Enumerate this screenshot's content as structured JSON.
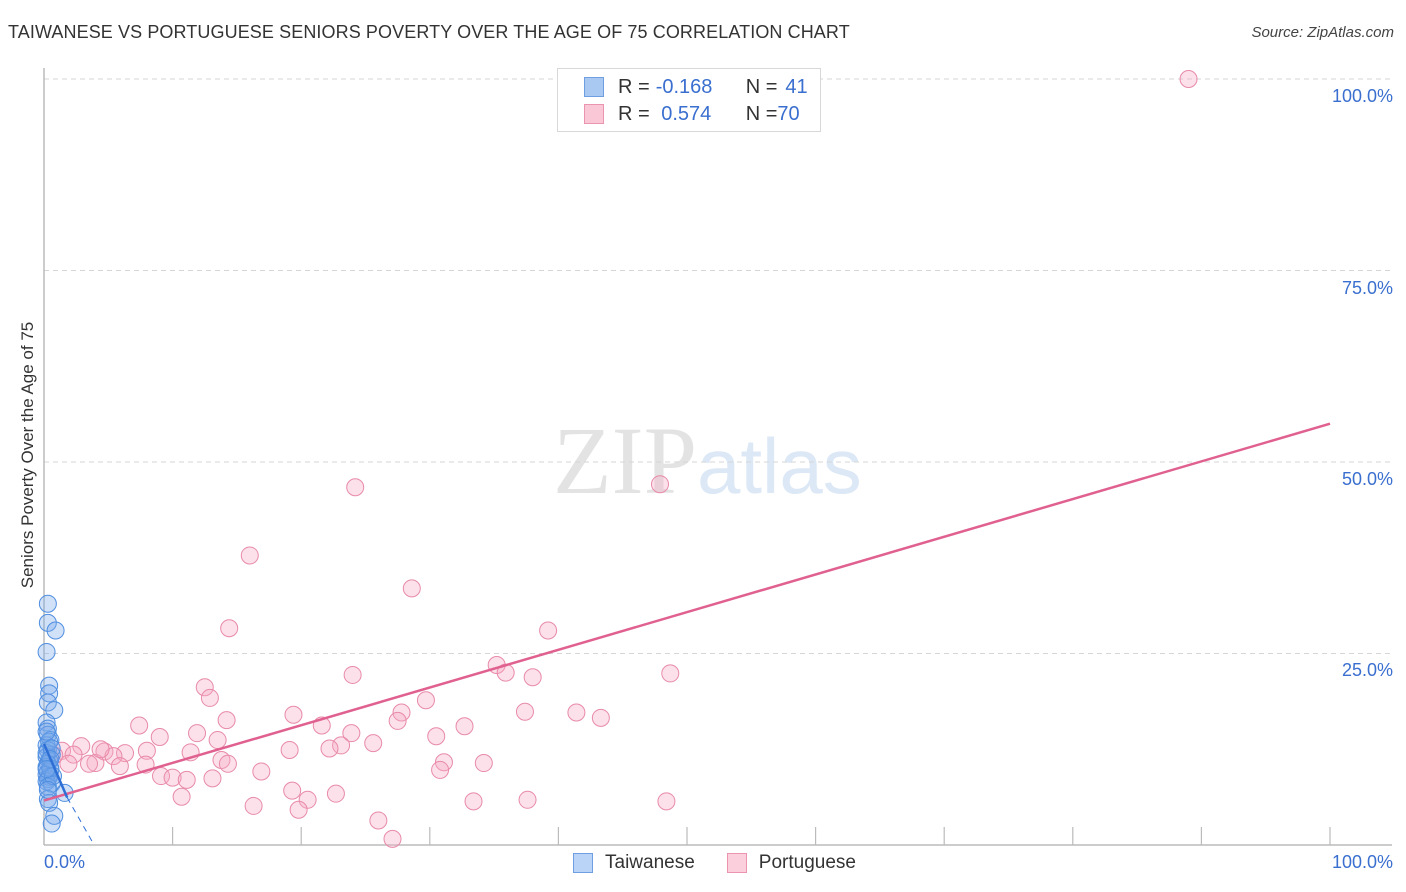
{
  "header": {
    "title": "TAIWANESE VS PORTUGUESE SENIORS POVERTY OVER THE AGE OF 75 CORRELATION CHART",
    "source": "Source: ZipAtlas.com"
  },
  "legend": {
    "rows": [
      {
        "r_label": "R = ",
        "r_value": "-0.168",
        "n_label": "N = ",
        "n_value": "41",
        "color": "#a9c8f2",
        "border": "#6f9fe0"
      },
      {
        "r_label": "R = ",
        "r_value": " 0.574",
        "n_label": "N = ",
        "n_value": "70",
        "color": "#f9c7d6",
        "border": "#eb94b0"
      }
    ]
  },
  "bottom_legend": [
    {
      "label": "Taiwanese",
      "color": "#b9d4f6",
      "border": "#6f9fe0"
    },
    {
      "label": "Portuguese",
      "color": "#fbd0dc",
      "border": "#eb94b0"
    }
  ],
  "axes": {
    "x_min_label": "0.0%",
    "x_max_label": "100.0%",
    "y_ticks": [
      "100.0%",
      "75.0%",
      "50.0%",
      "25.0%"
    ],
    "y_label": "Seniors Poverty Over the Age of 75"
  },
  "watermark": {
    "zip": "ZIP",
    "atlas": "atlas"
  },
  "colors": {
    "taiwanese_fill": "rgba(120,170,235,0.35)",
    "taiwanese_stroke": "#4f8ee0",
    "taiwanese_line": "#2e6fd6",
    "portuguese_fill": "rgba(246,170,195,0.35)",
    "portuguese_stroke": "#e88aa8",
    "portuguese_line": "#e0608f",
    "grid": "#d6d6d6",
    "axis": "#bbbbbb",
    "tick_label": "#3a6fcf"
  },
  "chart_data": {
    "type": "scatter",
    "title": "TAIWANESE VS PORTUGUESE SENIORS POVERTY OVER THE AGE OF 75 CORRELATION CHART",
    "xlabel": "",
    "ylabel": "Seniors Poverty Over the Age of 75",
    "xlim": [
      0,
      100
    ],
    "ylim": [
      0,
      100
    ],
    "x_tick_labels": [
      "0.0%",
      "100.0%"
    ],
    "y_tick_labels": [
      "25.0%",
      "50.0%",
      "75.0%",
      "100.0%"
    ],
    "grid": true,
    "legend_position": "top-center and bottom",
    "series": [
      {
        "name": "Taiwanese",
        "R": -0.168,
        "N": 41,
        "points": [
          [
            0.3,
            31.5
          ],
          [
            0.3,
            29.0
          ],
          [
            0.9,
            28.0
          ],
          [
            0.2,
            25.2
          ],
          [
            0.4,
            20.8
          ],
          [
            0.4,
            19.8
          ],
          [
            0.3,
            18.6
          ],
          [
            0.8,
            17.6
          ],
          [
            0.2,
            16.0
          ],
          [
            0.3,
            15.2
          ],
          [
            0.3,
            14.4
          ],
          [
            0.5,
            13.7
          ],
          [
            0.2,
            13.0
          ],
          [
            0.3,
            12.4
          ],
          [
            0.6,
            11.8
          ],
          [
            0.2,
            11.5
          ],
          [
            0.4,
            11.0
          ],
          [
            0.3,
            10.6
          ],
          [
            0.2,
            10.2
          ],
          [
            0.5,
            9.8
          ],
          [
            0.3,
            9.5
          ],
          [
            0.2,
            9.2
          ],
          [
            0.4,
            8.9
          ],
          [
            0.3,
            8.6
          ],
          [
            0.2,
            8.3
          ],
          [
            0.6,
            8.0
          ],
          [
            0.3,
            7.6
          ],
          [
            1.6,
            6.8
          ],
          [
            0.3,
            6.0
          ],
          [
            0.4,
            5.5
          ],
          [
            0.8,
            3.8
          ],
          [
            0.6,
            2.8
          ],
          [
            0.2,
            12.0
          ],
          [
            0.5,
            10.0
          ],
          [
            0.7,
            9.0
          ],
          [
            0.4,
            13.5
          ],
          [
            0.2,
            14.8
          ],
          [
            0.6,
            12.6
          ],
          [
            0.3,
            7.2
          ],
          [
            0.5,
            11.2
          ],
          [
            0.2,
            9.9
          ]
        ],
        "trend_line": {
          "x": [
            0,
            1.8
          ],
          "y": [
            13.2,
            6.2
          ],
          "dashed_extension_to": [
            3.9,
            0.0
          ]
        }
      },
      {
        "name": "Portuguese",
        "R": 0.574,
        "N": 70,
        "points": [
          [
            89.0,
            100.0
          ],
          [
            47.9,
            47.1
          ],
          [
            24.2,
            46.7
          ],
          [
            16.0,
            37.8
          ],
          [
            28.6,
            33.5
          ],
          [
            14.4,
            28.3
          ],
          [
            39.2,
            28.0
          ],
          [
            35.2,
            23.5
          ],
          [
            48.7,
            22.4
          ],
          [
            24.0,
            22.2
          ],
          [
            35.9,
            22.5
          ],
          [
            38.0,
            21.9
          ],
          [
            12.5,
            20.6
          ],
          [
            12.9,
            19.2
          ],
          [
            29.7,
            18.9
          ],
          [
            37.4,
            17.4
          ],
          [
            41.4,
            17.3
          ],
          [
            43.3,
            16.6
          ],
          [
            19.4,
            17.0
          ],
          [
            27.8,
            17.3
          ],
          [
            14.2,
            16.3
          ],
          [
            27.5,
            16.2
          ],
          [
            21.6,
            15.6
          ],
          [
            7.4,
            15.6
          ],
          [
            32.7,
            15.5
          ],
          [
            11.9,
            14.6
          ],
          [
            23.9,
            14.6
          ],
          [
            9.0,
            14.1
          ],
          [
            13.5,
            13.7
          ],
          [
            30.5,
            14.2
          ],
          [
            19.1,
            12.4
          ],
          [
            23.1,
            13.0
          ],
          [
            2.9,
            12.9
          ],
          [
            8.0,
            12.3
          ],
          [
            11.4,
            12.1
          ],
          [
            1.4,
            12.3
          ],
          [
            6.3,
            12.0
          ],
          [
            4.7,
            12.2
          ],
          [
            0.8,
            11.7
          ],
          [
            5.4,
            11.6
          ],
          [
            2.3,
            11.8
          ],
          [
            13.8,
            11.1
          ],
          [
            14.3,
            10.6
          ],
          [
            31.1,
            10.8
          ],
          [
            34.2,
            10.7
          ],
          [
            4.0,
            10.7
          ],
          [
            3.5,
            10.6
          ],
          [
            7.9,
            10.5
          ],
          [
            5.9,
            10.3
          ],
          [
            1.9,
            10.6
          ],
          [
            16.9,
            9.6
          ],
          [
            9.1,
            9.0
          ],
          [
            10.0,
            8.8
          ],
          [
            11.1,
            8.5
          ],
          [
            30.8,
            9.8
          ],
          [
            19.3,
            7.1
          ],
          [
            22.7,
            6.7
          ],
          [
            10.7,
            6.3
          ],
          [
            20.5,
            5.9
          ],
          [
            33.4,
            5.7
          ],
          [
            16.3,
            5.1
          ],
          [
            19.8,
            4.6
          ],
          [
            26.0,
            3.2
          ],
          [
            27.1,
            0.8
          ],
          [
            37.6,
            5.9
          ],
          [
            48.4,
            5.7
          ],
          [
            13.1,
            8.7
          ],
          [
            22.2,
            12.6
          ],
          [
            25.6,
            13.3
          ],
          [
            4.4,
            12.5
          ]
        ],
        "trend_line": {
          "x": [
            0,
            100
          ],
          "y": [
            5.8,
            55.0
          ]
        }
      }
    ]
  }
}
